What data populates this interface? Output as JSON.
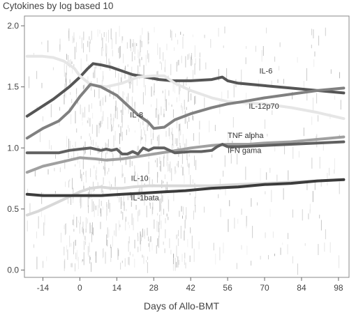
{
  "chart_data": {
    "type": "line",
    "title": "Cytokines by log based 10",
    "xlabel": "Days of Allo-BMT",
    "ylabel": "",
    "xlim": [
      -21,
      102
    ],
    "ylim": [
      -0.06,
      2.08
    ],
    "x_ticks": [
      -14,
      0,
      14,
      28,
      42,
      56,
      70,
      84,
      98
    ],
    "y_ticks": [
      "0.0",
      "0.5",
      "1.0",
      "1.5",
      "2.0"
    ],
    "grid": false,
    "legend": "none",
    "series": [
      {
        "name": "IL-6",
        "color": "#555555",
        "x": [
          -20,
          -10,
          -4,
          0,
          3,
          5,
          8,
          12,
          16,
          20,
          25,
          30,
          35,
          42,
          50,
          54,
          56,
          60,
          70,
          80,
          90,
          100
        ],
        "y": [
          1.26,
          1.4,
          1.5,
          1.58,
          1.65,
          1.69,
          1.68,
          1.66,
          1.63,
          1.6,
          1.58,
          1.56,
          1.55,
          1.55,
          1.56,
          1.58,
          1.55,
          1.53,
          1.51,
          1.49,
          1.47,
          1.45
        ]
      },
      {
        "name": "IL-12p70",
        "color": "#e6e6e6",
        "x": [
          -20,
          -14,
          -10,
          -6,
          -2,
          0,
          4,
          10,
          16,
          22,
          28,
          32,
          36,
          42,
          50,
          56,
          62,
          70,
          80,
          90,
          100
        ],
        "y": [
          1.75,
          1.75,
          1.74,
          1.71,
          1.65,
          1.59,
          1.52,
          1.5,
          1.53,
          1.58,
          1.59,
          1.59,
          1.53,
          1.47,
          1.41,
          1.38,
          1.37,
          1.36,
          1.33,
          1.29,
          1.24
        ]
      },
      {
        "name": "IL-8",
        "color": "#808080",
        "x": [
          -20,
          -14,
          -8,
          -4,
          0,
          4,
          8,
          14,
          18,
          22,
          26,
          28,
          32,
          36,
          42,
          50,
          56,
          62,
          70,
          80,
          90,
          100
        ],
        "y": [
          1.08,
          1.16,
          1.22,
          1.3,
          1.42,
          1.52,
          1.5,
          1.43,
          1.35,
          1.27,
          1.21,
          1.16,
          1.17,
          1.23,
          1.28,
          1.33,
          1.36,
          1.38,
          1.41,
          1.44,
          1.47,
          1.49
        ]
      },
      {
        "name": "TNF alpha",
        "color": "#a0a0a0",
        "x": [
          -20,
          -14,
          -8,
          0,
          6,
          10,
          16,
          22,
          28,
          34,
          42,
          50,
          56,
          64,
          70,
          80,
          90,
          100
        ],
        "y": [
          0.8,
          0.85,
          0.88,
          0.92,
          0.91,
          0.9,
          0.91,
          0.93,
          0.95,
          0.97,
          1.0,
          1.02,
          1.03,
          1.03,
          1.04,
          1.05,
          1.07,
          1.09
        ]
      },
      {
        "name": "IFN gama",
        "color": "#606060",
        "x": [
          -20,
          -14,
          -8,
          -4,
          0,
          4,
          8,
          10,
          12,
          14,
          16,
          18,
          20,
          22,
          24,
          26,
          28,
          32,
          36,
          42,
          46,
          50,
          52,
          54,
          56,
          60,
          70,
          80,
          90,
          100
        ],
        "y": [
          0.96,
          0.96,
          0.96,
          0.98,
          0.99,
          1.0,
          0.98,
          0.99,
          0.98,
          0.99,
          0.95,
          0.95,
          0.97,
          0.95,
          1.0,
          0.98,
          1.0,
          1.0,
          0.96,
          0.97,
          0.97,
          0.98,
          1.01,
          1.03,
          1.01,
          1.01,
          1.02,
          1.03,
          1.04,
          1.05
        ]
      },
      {
        "name": "IL-10",
        "color": "#d8d8d8",
        "x": [
          -20,
          -16,
          -12,
          -8,
          -4,
          0,
          4,
          8,
          12,
          16,
          20,
          26,
          32,
          40,
          50,
          60,
          70,
          80,
          90,
          100
        ],
        "y": [
          0.45,
          0.48,
          0.52,
          0.56,
          0.6,
          0.64,
          0.67,
          0.68,
          0.67,
          0.67,
          0.68,
          0.69,
          0.69,
          0.69,
          0.69,
          0.7,
          0.71,
          0.72,
          0.73,
          0.74
        ]
      },
      {
        "name": "IL-1bata",
        "color": "#3c3c3c",
        "x": [
          -20,
          -14,
          -8,
          0,
          8,
          16,
          24,
          32,
          40,
          50,
          60,
          70,
          80,
          90,
          100
        ],
        "y": [
          0.62,
          0.61,
          0.61,
          0.61,
          0.61,
          0.62,
          0.63,
          0.64,
          0.65,
          0.67,
          0.68,
          0.7,
          0.71,
          0.73,
          0.74
        ]
      }
    ]
  }
}
